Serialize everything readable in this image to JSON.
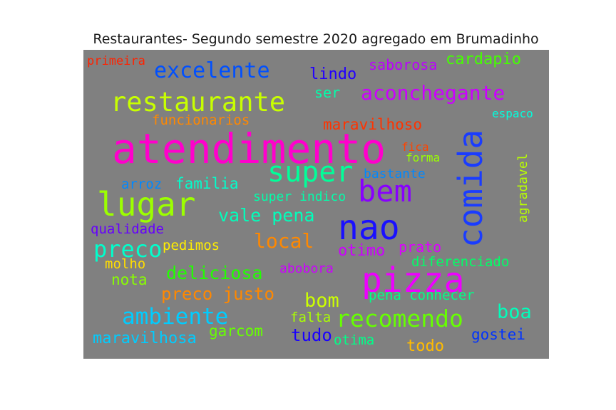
{
  "title": "Restaurantes- Segundo semestre 2020 agregado em Brumadinho",
  "words": [
    {
      "text": "atendimento",
      "color": "#ff00cc"
    },
    {
      "text": "comida",
      "color": "#1a3cff"
    },
    {
      "text": "lugar",
      "color": "#9cff00"
    },
    {
      "text": "super",
      "color": "#00ff99"
    },
    {
      "text": "bem",
      "color": "#8800ff"
    },
    {
      "text": "nao",
      "color": "#1a10ff"
    },
    {
      "text": "pizza",
      "color": "#ee00ff"
    },
    {
      "text": "restaurante",
      "color": "#c8ff00"
    },
    {
      "text": "excelente",
      "color": "#0050ff"
    },
    {
      "text": "aconchegante",
      "color": "#cc00ff"
    },
    {
      "text": "recomendo",
      "color": "#66ff00"
    },
    {
      "text": "ambiente",
      "color": "#00ccff"
    },
    {
      "text": "preco",
      "color": "#00ffcc"
    },
    {
      "text": "cardapio",
      "color": "#44ff00"
    },
    {
      "text": "lindo",
      "color": "#2200ff"
    },
    {
      "text": "saborosa",
      "color": "#bb00ff"
    },
    {
      "text": "primeira",
      "color": "#ff2200"
    },
    {
      "text": "ser",
      "color": "#00ffaa"
    },
    {
      "text": "funcionarios",
      "color": "#ff8800"
    },
    {
      "text": "maravilhoso",
      "color": "#ff3300"
    },
    {
      "text": "espaco",
      "color": "#00ffdd"
    },
    {
      "text": "fica",
      "color": "#ff4400"
    },
    {
      "text": "forma",
      "color": "#99ff00"
    },
    {
      "text": "bastante",
      "color": "#0088ff"
    },
    {
      "text": "arroz",
      "color": "#0088ff"
    },
    {
      "text": "familia",
      "color": "#00ffcc"
    },
    {
      "text": "super indico",
      "color": "#00ffaa"
    },
    {
      "text": "agradavel",
      "color": "#b8ff00"
    },
    {
      "text": "vale pena",
      "color": "#00ffbb"
    },
    {
      "text": "qualidade",
      "color": "#6600ff"
    },
    {
      "text": "local",
      "color": "#ff8800"
    },
    {
      "text": "pedimos",
      "color": "#ffee00"
    },
    {
      "text": "otimo",
      "color": "#cc00ff"
    },
    {
      "text": "prato",
      "color": "#dd00ff"
    },
    {
      "text": "molho",
      "color": "#ffdd00"
    },
    {
      "text": "diferenciado",
      "color": "#00ff66"
    },
    {
      "text": "deliciosa",
      "color": "#22ff00"
    },
    {
      "text": "abobora",
      "color": "#cc00ff"
    },
    {
      "text": "nota",
      "color": "#88ff00"
    },
    {
      "text": "preco justo",
      "color": "#ff8800"
    },
    {
      "text": "bom",
      "color": "#ccff00"
    },
    {
      "text": "pena conhecer",
      "color": "#00ff88"
    },
    {
      "text": "boa",
      "color": "#00ffbb"
    },
    {
      "text": "falta",
      "color": "#aaff00"
    },
    {
      "text": "garcom",
      "color": "#66ff00"
    },
    {
      "text": "maravilhosa",
      "color": "#00ccff"
    },
    {
      "text": "tudo",
      "color": "#1a00ff"
    },
    {
      "text": "otima",
      "color": "#00ff88"
    },
    {
      "text": "gostei",
      "color": "#0033ff"
    },
    {
      "text": "todo",
      "color": "#ffbb00"
    }
  ]
}
